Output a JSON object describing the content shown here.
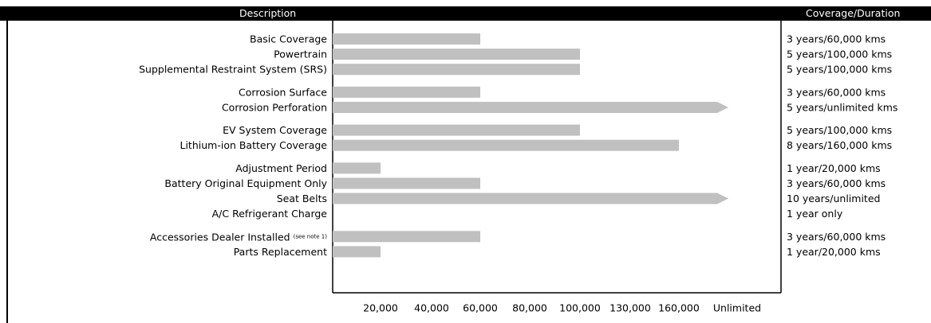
{
  "header": {
    "description_label": "Description",
    "coverage_label": "Coverage/Duration"
  },
  "colors": {
    "bar": "#c0c0c0",
    "header_bg": "#000000",
    "header_text": "#ffffff"
  },
  "chart_data": {
    "type": "bar",
    "orientation": "horizontal",
    "title": "",
    "xlabel": "",
    "ylabel": "",
    "x_ticks": [
      "20,000",
      "40,000",
      "60,000",
      "80,000",
      "100,000",
      "130,000",
      "160,000",
      "Unlimited"
    ],
    "x_tick_values": [
      20000,
      40000,
      60000,
      80000,
      100000,
      130000,
      160000,
      "Unlimited"
    ],
    "grid": false,
    "legend": "none",
    "rows": [
      {
        "label": "Basic Coverage",
        "note": "",
        "value": 60000,
        "unlimited": false,
        "coverage": "3 years/60,000 kms",
        "slot": 0
      },
      {
        "label": "Powertrain",
        "note": "",
        "value": 100000,
        "unlimited": false,
        "coverage": "5 years/100,000 kms",
        "slot": 1
      },
      {
        "label": "Supplemental Restraint System (SRS)",
        "note": "",
        "value": 100000,
        "unlimited": false,
        "coverage": "5 years/100,000 kms",
        "slot": 2
      },
      {
        "label": "Corrosion Surface",
        "note": "",
        "value": 60000,
        "unlimited": false,
        "coverage": "3 years/60,000 kms",
        "slot": 3.5
      },
      {
        "label": "Corrosion Perforation",
        "note": "",
        "value": null,
        "unlimited": true,
        "coverage": "5 years/unlimited kms",
        "slot": 4.5
      },
      {
        "label": "EV System Coverage",
        "note": "",
        "value": 100000,
        "unlimited": false,
        "coverage": "5 years/100,000 kms",
        "slot": 6
      },
      {
        "label": "Lithium-ion Battery Coverage",
        "note": "",
        "value": 160000,
        "unlimited": false,
        "coverage": "8 years/160,000 kms",
        "slot": 7
      },
      {
        "label": "Adjustment Period",
        "note": "",
        "value": 20000,
        "unlimited": false,
        "coverage": "1 year/20,000 kms",
        "slot": 8.5
      },
      {
        "label": "Battery Original Equipment Only",
        "note": "",
        "value": 60000,
        "unlimited": false,
        "coverage": "3 years/60,000 kms",
        "slot": 9.5
      },
      {
        "label": "Seat Belts",
        "note": "",
        "value": null,
        "unlimited": true,
        "coverage": "10 years/unlimited",
        "slot": 10.5
      },
      {
        "label": "A/C Refrigerant Charge",
        "note": "",
        "value": null,
        "unlimited": false,
        "coverage": "1 year only",
        "slot": 11.5
      },
      {
        "label": "Accessories Dealer Installed",
        "note": "(see note 1)",
        "value": 60000,
        "unlimited": false,
        "coverage": "3 years/60,000 kms",
        "slot": 13
      },
      {
        "label": "Parts Replacement",
        "note": "",
        "value": 20000,
        "unlimited": false,
        "coverage": "1 year/20,000 kms",
        "slot": 14
      }
    ]
  }
}
